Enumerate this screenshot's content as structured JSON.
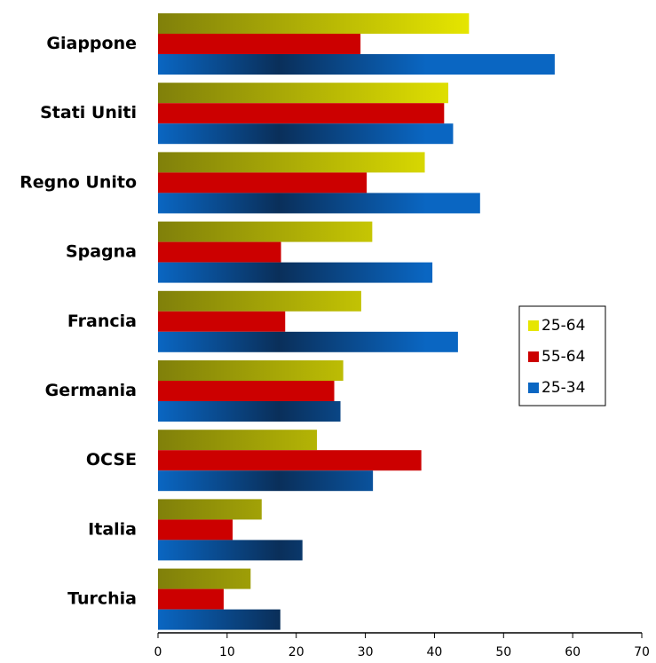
{
  "chart_data": {
    "type": "hbar",
    "categories": [
      "Giappone",
      "Stati Uniti",
      "Regno Unito",
      "Spagna",
      "Francia",
      "Germania",
      "OCSE",
      "Italia",
      "Turchia"
    ],
    "series": [
      {
        "name": "25-64",
        "color": "#e6e600",
        "values": [
          45,
          42,
          38.6,
          31,
          29.4,
          26.8,
          23,
          15,
          13.4
        ]
      },
      {
        "name": "55-64",
        "color": "#cc0000",
        "values": [
          29.3,
          41.4,
          30.2,
          17.8,
          18.4,
          25.5,
          38.1,
          10.8,
          9.5
        ]
      },
      {
        "name": "25-34",
        "color": "#0a66c2",
        "values": [
          57.4,
          42.7,
          46.6,
          39.7,
          43.4,
          26.4,
          31.1,
          20.9,
          17.7
        ]
      }
    ],
    "xlim": [
      0,
      70
    ],
    "xticks": [
      0,
      10,
      20,
      30,
      40,
      50,
      60,
      70
    ],
    "legend": "right"
  }
}
